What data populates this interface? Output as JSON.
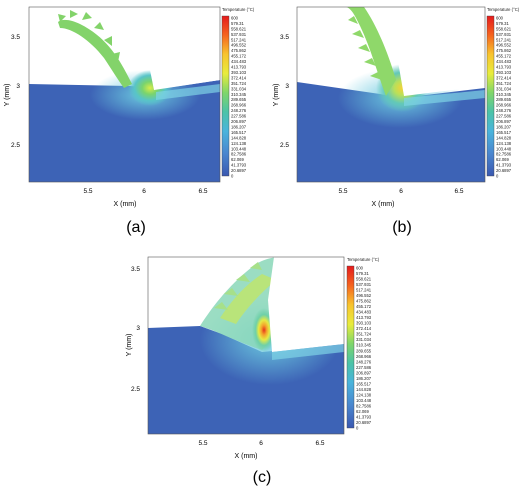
{
  "panels": [
    {
      "caption": "(a)",
      "xlabel": "X (mm)",
      "ylabel": "Y (mm)",
      "xticks": [
        "5.5",
        "6",
        "6.5"
      ],
      "yticks": [
        "3.5",
        "3",
        "2.5"
      ],
      "colorbar_title": "Temperature (°C)"
    },
    {
      "caption": "(b)",
      "xlabel": "X (mm)",
      "ylabel": "Y (mm)",
      "xticks": [
        "5.5",
        "6",
        "6.5"
      ],
      "yticks": [
        "3.5",
        "3",
        "2.5"
      ],
      "colorbar_title": "Temperature (°C)"
    },
    {
      "caption": "(c)",
      "xlabel": "X (mm)",
      "ylabel": "Y (mm)",
      "xticks": [
        "5.5",
        "6",
        "6.5"
      ],
      "yticks": [
        "3.5",
        "3",
        "2.5"
      ],
      "colorbar_title": "Temperature (°C)"
    }
  ],
  "colorbar_levels": [
    "600",
    "579.31",
    "558.621",
    "537.931",
    "517.241",
    "496.552",
    "475.862",
    "455.172",
    "434.483",
    "413.793",
    "393.103",
    "372.414",
    "351.724",
    "331.034",
    "310.345",
    "289.655",
    "268.966",
    "248.276",
    "227.586",
    "206.897",
    "186.207",
    "165.517",
    "144.828",
    "124.138",
    "103.448",
    "82.7586",
    "62.069",
    "41.3793",
    "20.6897",
    "0"
  ],
  "colors": {
    "cold": "#3d63b6",
    "warm": "#f6d33a",
    "hot": "#e1321e",
    "air": "#ffffff"
  }
}
